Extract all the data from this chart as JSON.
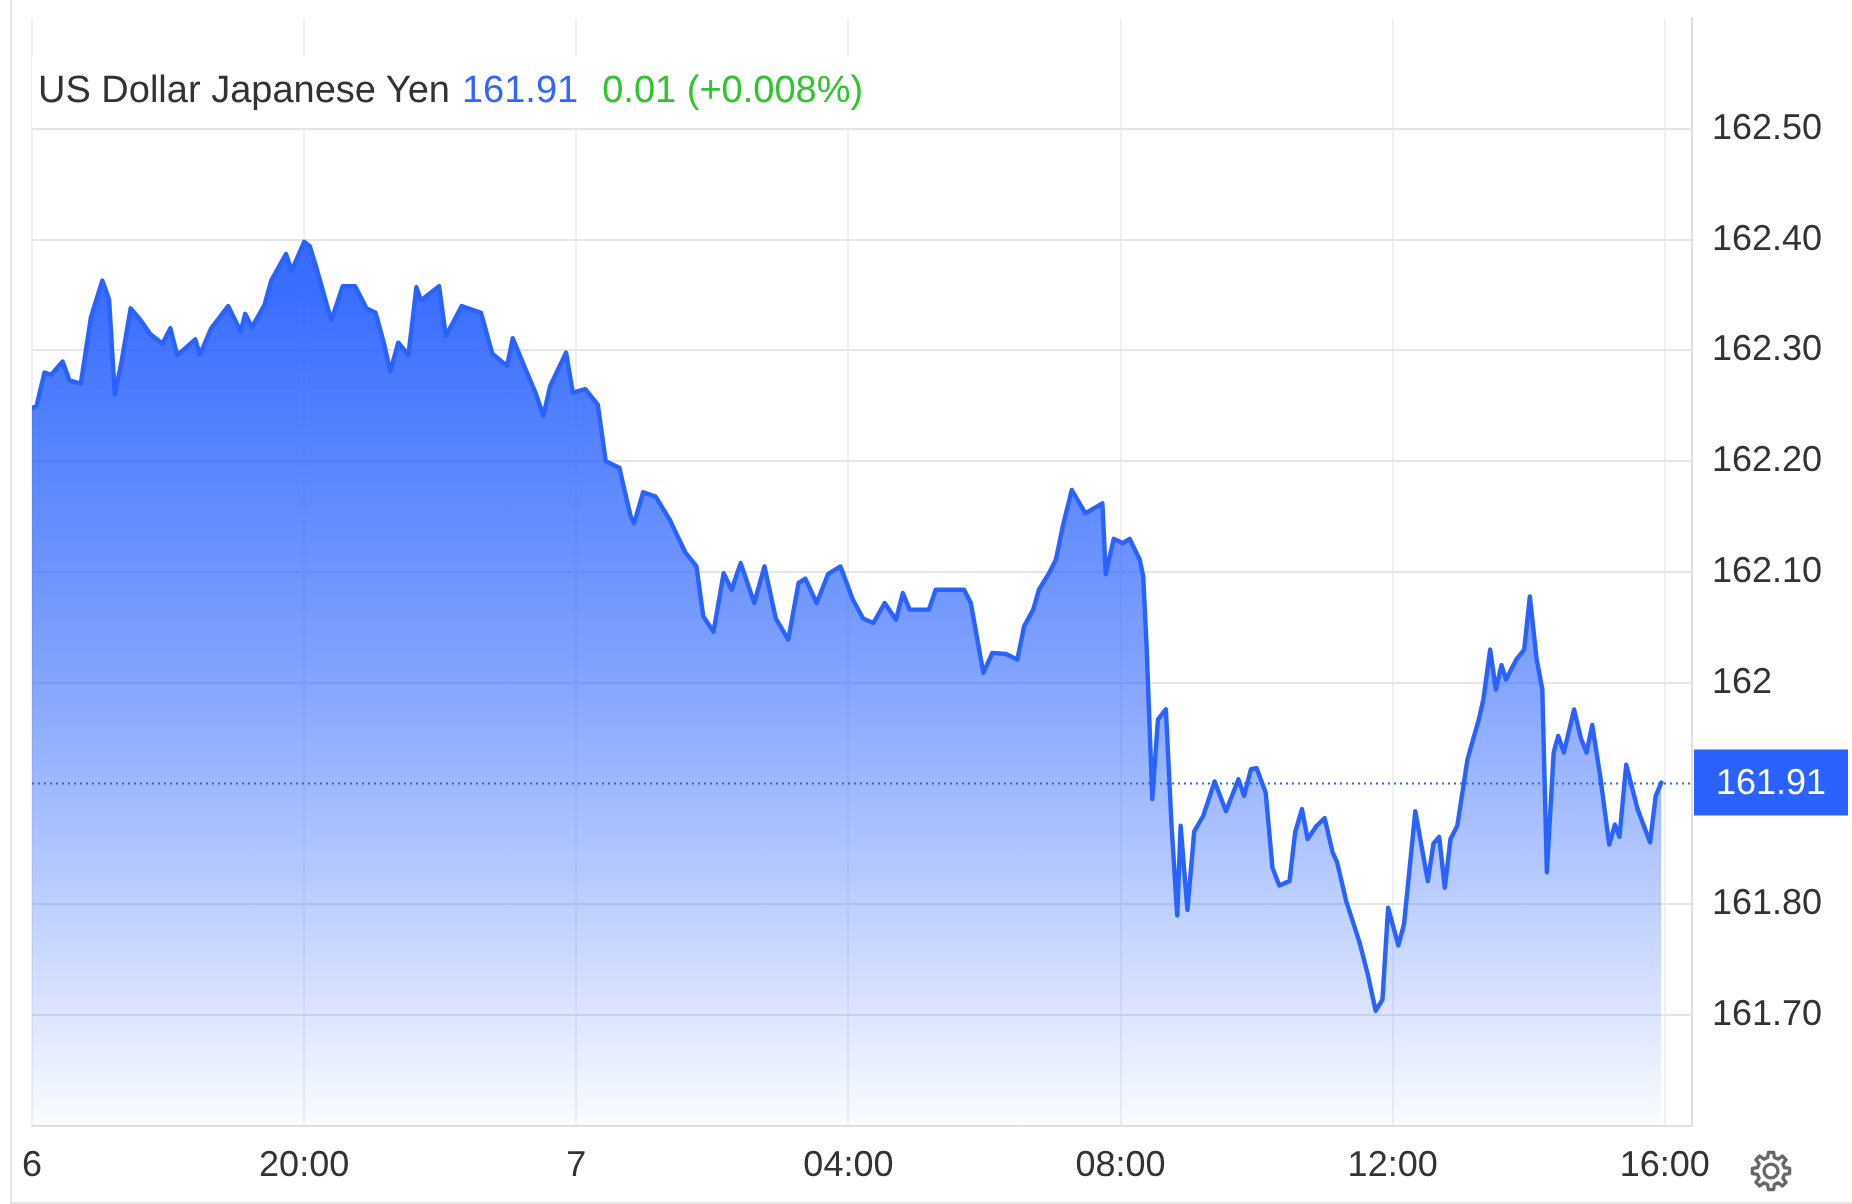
{
  "chart_data": {
    "type": "area",
    "title": "US Dollar Japanese Yen",
    "annotations": [
      "161.91",
      "0.01 (+0.008%)"
    ],
    "x": [
      "--07-06T16:00",
      "--07-06T16:04",
      "--07-06T16:11",
      "--07-06T16:17",
      "--07-06T16:27",
      "--07-06T16:33",
      "--07-06T16:43",
      "--07-06T16:52",
      "--07-06T17:02",
      "--07-06T17:08",
      "--07-06T17:13",
      "--07-06T17:19",
      "--07-06T17:27",
      "--07-06T17:36",
      "--07-06T17:44",
      "--07-06T17:55",
      "--07-06T18:02",
      "--07-06T18:08",
      "--07-06T18:13",
      "--07-06T18:24",
      "--07-06T18:28",
      "--07-06T18:38",
      "--07-06T18:53",
      "--07-06T19:04",
      "--07-06T19:08",
      "--07-06T19:14",
      "--07-06T19:25",
      "--07-06T19:31",
      "--07-06T19:44",
      "--07-06T19:49",
      "--07-06T20:00",
      "--07-06T20:05",
      "--07-06T20:11",
      "--07-06T20:24",
      "--07-06T20:34",
      "--07-06T20:45",
      "--07-06T20:55",
      "--07-06T21:03",
      "--07-06T21:10",
      "--07-06T21:16",
      "--07-06T21:23",
      "--07-06T21:32",
      "--07-06T21:39",
      "--07-06T21:43",
      "--07-06T21:59",
      "--07-06T22:05",
      "--07-06T22:19",
      "--07-06T22:36",
      "--07-06T22:46",
      "--07-06T22:59",
      "--07-06T23:04",
      "--07-06T23:14",
      "--07-06T23:24",
      "--07-06T23:31",
      "--07-06T23:37",
      "--07-06T23:51",
      "--07-06T23:57",
      "--07-07T00:08",
      "--07-07T00:19",
      "--07-07T00:26",
      "--07-07T00:38",
      "--07-07T00:48",
      "--07-07T00:51",
      "--07-07T00:59",
      "--07-07T01:10",
      "--07-07T01:22",
      "--07-07T01:36",
      "--07-07T01:46",
      "--07-07T01:52",
      "--07-07T02:01",
      "--07-07T02:10",
      "--07-07T02:17",
      "--07-07T02:25",
      "--07-07T02:37",
      "--07-07T02:46",
      "--07-07T02:56",
      "--07-07T03:07",
      "--07-07T03:16",
      "--07-07T03:22",
      "--07-07T03:32",
      "--07-07T03:42",
      "--07-07T03:53",
      "--07-07T04:04",
      "--07-07T04:13",
      "--07-07T04:22",
      "--07-07T04:32",
      "--07-07T04:42",
      "--07-07T04:48",
      "--07-07T04:54",
      "--07-07T05:11",
      "--07-07T05:17",
      "--07-07T05:42",
      "--07-07T05:48",
      "--07-07T05:59",
      "--07-07T06:07",
      "--07-07T06:19",
      "--07-07T06:29",
      "--07-07T06:35",
      "--07-07T06:43",
      "--07-07T06:48",
      "--07-07T06:57",
      "--07-07T07:03",
      "--07-07T07:09",
      "--07-07T07:17",
      "--07-07T07:29",
      "--07-07T07:44",
      "--07-07T07:47",
      "--07-07T07:54",
      "--07-07T08:02",
      "--07-07T08:08",
      "--07-07T08:17",
      "--07-07T08:20",
      "--07-07T08:23",
      "--07-07T08:28",
      "--07-07T08:33",
      "--07-07T08:40",
      "--07-07T08:45",
      "--07-07T08:50",
      "--07-07T08:53",
      "--07-07T08:59",
      "--07-07T09:05",
      "--07-07T09:13",
      "--07-07T09:23",
      "--07-07T09:33",
      "--07-07T09:44",
      "--07-07T09:49",
      "--07-07T09:55",
      "--07-07T10:00",
      "--07-07T10:08",
      "--07-07T10:14",
      "--07-07T10:20",
      "--07-07T10:29",
      "--07-07T10:34",
      "--07-07T10:40",
      "--07-07T10:45",
      "--07-07T10:53",
      "--07-07T11:00",
      "--07-07T11:07",
      "--07-07T11:11",
      "--07-07T11:19",
      "--07-07T11:31",
      "--07-07T11:38",
      "--07-07T11:45",
      "--07-07T11:51",
      "--07-07T11:56",
      "--07-07T12:05",
      "--07-07T12:10",
      "--07-07T12:20",
      "--07-07T12:31",
      "--07-07T12:36",
      "--07-07T12:41",
      "--07-07T12:46",
      "--07-07T12:51",
      "--07-07T12:57",
      "--07-07T13:06",
      "--07-07T13:16",
      "--07-07T13:20",
      "--07-07T13:26",
      "--07-07T13:31",
      "--07-07T13:36",
      "--07-07T13:40",
      "--07-07T13:49",
      "--07-07T13:56",
      "--07-07T14:01",
      "--07-07T14:07",
      "--07-07T14:12",
      "--07-07T14:16",
      "--07-07T14:22",
      "--07-07T14:26",
      "--07-07T14:31",
      "--07-07T14:40",
      "--07-07T14:46",
      "--07-07T14:51",
      "--07-07T14:56",
      "--07-07T15:03",
      "--07-07T15:11",
      "--07-07T15:16",
      "--07-07T15:20",
      "--07-07T15:26",
      "--07-07T15:36",
      "--07-07T15:47",
      "--07-07T15:52",
      "--07-07T15:57"
    ],
    "values": [
      162.248,
      162.25,
      162.28,
      162.278,
      162.29,
      162.273,
      162.27,
      162.33,
      162.363,
      162.346,
      162.26,
      162.29,
      162.338,
      162.327,
      162.315,
      162.306,
      162.32,
      162.296,
      162.3,
      162.31,
      162.296,
      162.32,
      162.34,
      162.317,
      162.333,
      162.321,
      162.341,
      162.363,
      162.387,
      162.372,
      162.398,
      162.394,
      162.374,
      162.327,
      162.358,
      162.358,
      162.338,
      162.334,
      162.308,
      162.281,
      162.307,
      162.296,
      162.357,
      162.345,
      162.358,
      162.313,
      162.34,
      162.334,
      162.297,
      162.286,
      162.311,
      162.286,
      162.262,
      162.241,
      162.268,
      162.298,
      162.262,
      162.265,
      162.251,
      162.2,
      162.194,
      162.15,
      162.144,
      162.172,
      162.168,
      162.148,
      162.118,
      162.105,
      162.06,
      162.046,
      162.099,
      162.084,
      162.108,
      162.072,
      162.105,
      162.058,
      162.039,
      162.09,
      162.094,
      162.072,
      162.098,
      162.105,
      162.075,
      162.058,
      162.054,
      162.072,
      162.057,
      162.081,
      162.066,
      162.066,
      162.084,
      162.084,
      162.072,
      162.009,
      162.027,
      162.026,
      162.021,
      162.051,
      162.066,
      162.084,
      162.099,
      162.111,
      162.141,
      162.174,
      162.153,
      162.162,
      162.098,
      162.13,
      162.126,
      162.13,
      162.111,
      162.096,
      162.033,
      161.895,
      161.967,
      161.976,
      161.871,
      161.79,
      161.871,
      161.795,
      161.866,
      161.88,
      161.911,
      161.884,
      161.913,
      161.898,
      161.922,
      161.923,
      161.901,
      161.833,
      161.817,
      161.821,
      161.865,
      161.886,
      161.859,
      161.871,
      161.878,
      161.847,
      161.838,
      161.803,
      161.765,
      161.737,
      161.704,
      161.714,
      161.797,
      161.763,
      161.782,
      161.884,
      161.821,
      161.855,
      161.861,
      161.815,
      161.859,
      161.871,
      161.931,
      161.967,
      161.985,
      162.03,
      161.994,
      162.016,
      162.003,
      162.021,
      162.03,
      162.078,
      162.021,
      161.994,
      161.829,
      161.937,
      161.952,
      161.937,
      161.976,
      161.95,
      161.937,
      161.962,
      161.916,
      161.854,
      161.872,
      161.861,
      161.926,
      161.886,
      161.856,
      161.898,
      161.91
    ],
    "color": "#2962ff",
    "xlim": [
      "--07-06T16:00",
      "--07-07T16:24"
    ],
    "xticks": [
      {
        "value": "--07-07T00:00",
        "label": "7"
      },
      {
        "value": "--07-06T16:00",
        "label": "6"
      },
      {
        "value": "--07-06T20:00",
        "label": "20:00"
      },
      {
        "value": "--07-07T04:00",
        "label": "04:00"
      },
      {
        "value": "--07-07T08:00",
        "label": "08:00"
      },
      {
        "value": "--07-07T12:00",
        "label": "12:00"
      },
      {
        "value": "--07-07T16:00",
        "label": "16:00"
      }
    ],
    "ylim": [
      161.6,
      162.6
    ],
    "yticks": [
      {
        "value": 161.7,
        "label": "161.70"
      },
      {
        "value": 161.8,
        "label": "161.80"
      },
      162,
      {
        "value": 162.1,
        "label": "162.10"
      },
      {
        "value": 162.2,
        "label": "162.20"
      },
      {
        "value": 162.3,
        "label": "162.30"
      },
      {
        "value": 162.4,
        "label": "162.40"
      },
      {
        "value": 162.5,
        "label": "162.50"
      }
    ],
    "grid": true,
    "legend": false,
    "marker": "none",
    "ref_lines": [
      {
        "axis": "y",
        "value": 161.91,
        "label": "161.91",
        "color": "#2962ff",
        "line_style": "dotted"
      }
    ]
  }
}
